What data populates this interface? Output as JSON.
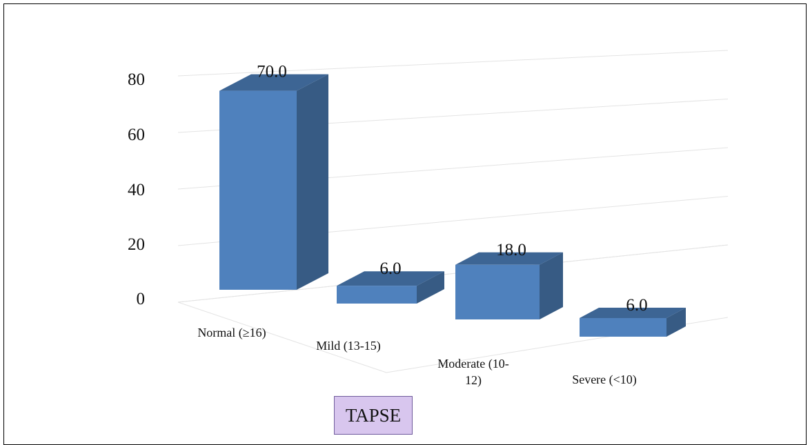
{
  "chart_data": {
    "type": "bar",
    "style": "3d-column",
    "categories": [
      "Normal (≥16)",
      "Mild (13-15)",
      "Moderate (10-12)",
      "Severe (<10)"
    ],
    "category_lines": [
      [
        "Normal (≥16)"
      ],
      [
        "Mild (13-15)"
      ],
      [
        "Moderate (10-",
        "12)"
      ],
      [
        "Severe (<10)"
      ]
    ],
    "series": [
      {
        "name": "TAPSE",
        "values": [
          70.0,
          6.0,
          18.0,
          6.0
        ]
      }
    ],
    "data_labels": [
      "70.0",
      "6.0",
      "18.0",
      "6.0"
    ],
    "ylim": [
      0,
      80
    ],
    "yticks": [
      0,
      20,
      40,
      60,
      80
    ],
    "grid": true,
    "legend": "bottom-center",
    "colors": {
      "front": "#4f81bd",
      "side": "#375b84",
      "top": "#3d6594",
      "grid": "#e3e3e3"
    }
  }
}
